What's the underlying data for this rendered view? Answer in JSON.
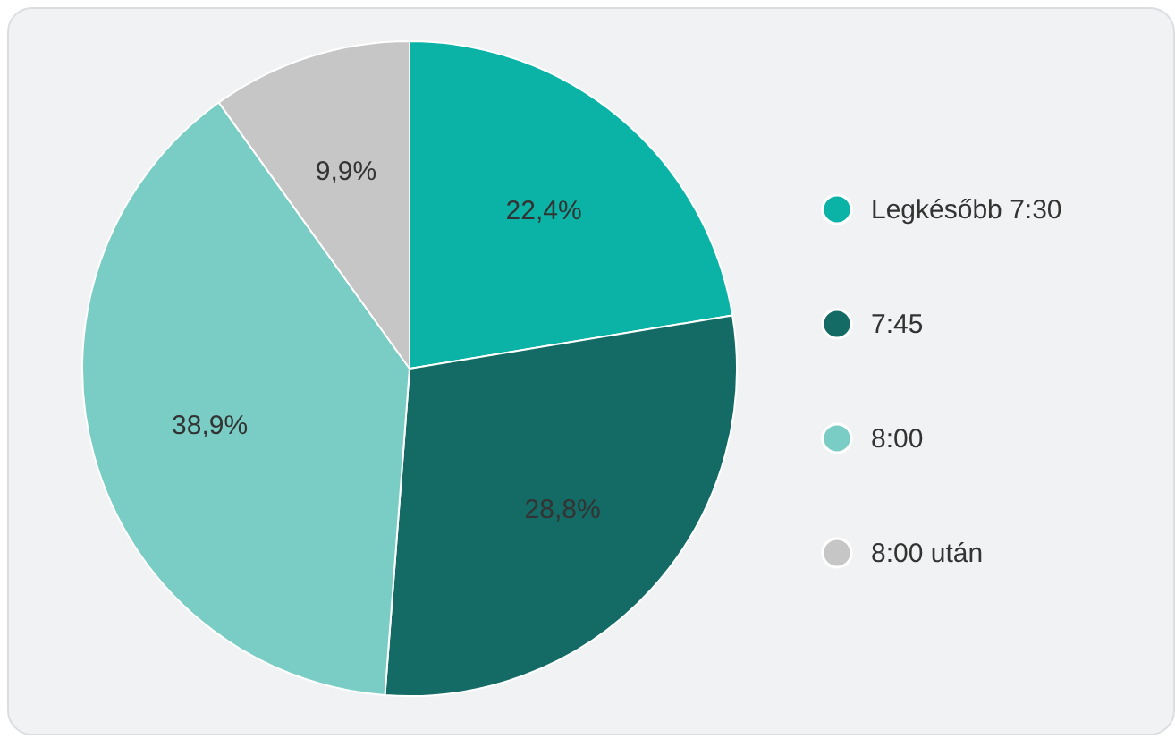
{
  "chart_data": {
    "type": "pie",
    "categories": [
      "Legkésőbb 7:30",
      "7:45",
      "8:00",
      "8:00 után"
    ],
    "values": [
      22.4,
      28.8,
      38.9,
      9.9
    ],
    "value_labels": [
      "22,4%",
      "28,8%",
      "38,9%",
      "9,9%"
    ],
    "colors": [
      "#0ab3a6",
      "#146b66",
      "#79cdc4",
      "#c6c6c6"
    ],
    "legend": "right"
  }
}
